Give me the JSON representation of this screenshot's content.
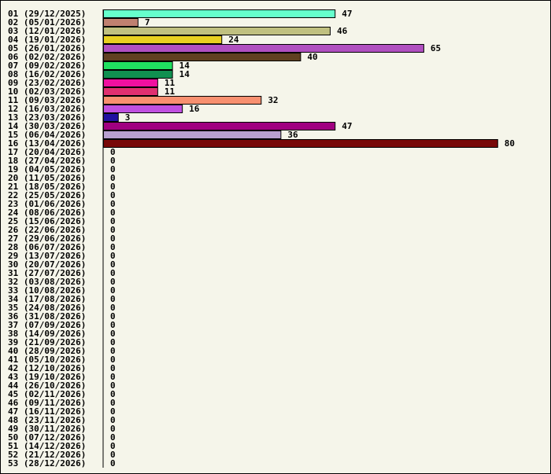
{
  "chart_data": {
    "type": "bar",
    "orientation": "horizontal",
    "title": "",
    "xlabel": "",
    "ylabel": "",
    "grid": false,
    "legend": "none",
    "xlim": [
      0,
      80
    ],
    "categories": [
      "01 (29/12/2025)",
      "02 (05/01/2026)",
      "03 (12/01/2026)",
      "04 (19/01/2026)",
      "05 (26/01/2026)",
      "06 (02/02/2026)",
      "07 (09/02/2026)",
      "08 (16/02/2026)",
      "09 (23/02/2026)",
      "10 (02/03/2026)",
      "11 (09/03/2026)",
      "12 (16/03/2026)",
      "13 (23/03/2026)",
      "14 (30/03/2026)",
      "15 (06/04/2026)",
      "16 (13/04/2026)",
      "17 (20/04/2026)",
      "18 (27/04/2026)",
      "19 (04/05/2026)",
      "20 (11/05/2026)",
      "21 (18/05/2026)",
      "22 (25/05/2026)",
      "23 (01/06/2026)",
      "24 (08/06/2026)",
      "25 (15/06/2026)",
      "26 (22/06/2026)",
      "27 (29/06/2026)",
      "28 (06/07/2026)",
      "29 (13/07/2026)",
      "30 (20/07/2026)",
      "31 (27/07/2026)",
      "32 (03/08/2026)",
      "33 (10/08/2026)",
      "34 (17/08/2026)",
      "35 (24/08/2026)",
      "36 (31/08/2026)",
      "37 (07/09/2026)",
      "38 (14/09/2026)",
      "39 (21/09/2026)",
      "40 (28/09/2026)",
      "41 (05/10/2026)",
      "42 (12/10/2026)",
      "43 (19/10/2026)",
      "44 (26/10/2026)",
      "45 (02/11/2026)",
      "46 (09/11/2026)",
      "47 (16/11/2026)",
      "48 (23/11/2026)",
      "49 (30/11/2026)",
      "50 (07/12/2026)",
      "51 (14/12/2026)",
      "52 (21/12/2026)",
      "53 (28/12/2026)"
    ],
    "values": [
      47,
      7,
      46,
      24,
      65,
      40,
      14,
      14,
      11,
      11,
      32,
      16,
      3,
      47,
      36,
      80,
      0,
      0,
      0,
      0,
      0,
      0,
      0,
      0,
      0,
      0,
      0,
      0,
      0,
      0,
      0,
      0,
      0,
      0,
      0,
      0,
      0,
      0,
      0,
      0,
      0,
      0,
      0,
      0,
      0,
      0,
      0,
      0,
      0,
      0,
      0,
      0,
      0
    ],
    "colors": [
      "#66ffcc",
      "#c08070",
      "#c0c080",
      "#e8d020",
      "#b050c0",
      "#604020",
      "#20e060",
      "#109050",
      "#f010a0",
      "#e03070",
      "#f89070",
      "#c050e0",
      "#2010a0",
      "#a00080",
      "#b8a0d0",
      "#780808"
    ],
    "bar_border_color": "#000000",
    "axis_color": "#000000"
  }
}
